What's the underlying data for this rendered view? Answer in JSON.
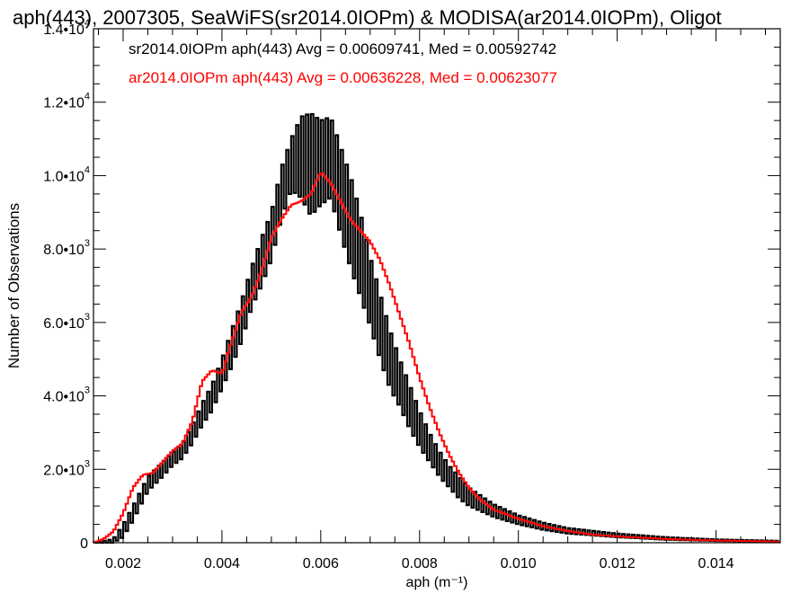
{
  "chart_data": {
    "type": "line",
    "title": "aph(443), 2007305, SeaWiFS(sr2014.0IOPm) & MODISA(ar2014.0IOPm), Oligot",
    "xlabel": "aph (m⁻¹)",
    "ylabel": "Number of Observations",
    "xlim": [
      0.0014,
      0.0153
    ],
    "ylim": [
      0,
      14000
    ],
    "x_ticks": [
      {
        "value": 0.002,
        "label": "0.002"
      },
      {
        "value": 0.004,
        "label": "0.004"
      },
      {
        "value": 0.006,
        "label": "0.006"
      },
      {
        "value": 0.008,
        "label": "0.008"
      },
      {
        "value": 0.01,
        "label": "0.010"
      },
      {
        "value": 0.012,
        "label": "0.012"
      },
      {
        "value": 0.014,
        "label": "0.014"
      }
    ],
    "y_ticks": [
      {
        "value": 0,
        "mant": "0",
        "exp": ""
      },
      {
        "value": 2000,
        "mant": "2.0•10",
        "exp": "3"
      },
      {
        "value": 4000,
        "mant": "4.0•10",
        "exp": "3"
      },
      {
        "value": 6000,
        "mant": "6.0•10",
        "exp": "3"
      },
      {
        "value": 8000,
        "mant": "8.0•10",
        "exp": "3"
      },
      {
        "value": 10000,
        "mant": "1.0•10",
        "exp": "4"
      },
      {
        "value": 12000,
        "mant": "1.2•10",
        "exp": "4"
      },
      {
        "value": 14000,
        "mant": "1.4•10",
        "exp": "4"
      }
    ],
    "legend_placement": "top-left",
    "series": [
      {
        "name": "sr2014.0IOPm",
        "legend_text": "sr2014.0IOPm aph(443) Avg = 0.00609741, Med = 0.00592742",
        "color": "#000000",
        "style": "step-oscillating",
        "x": [
          0.0014,
          0.0018,
          0.002,
          0.0022,
          0.0025,
          0.0028,
          0.003,
          0.0032,
          0.0034,
          0.0036,
          0.0038,
          0.004,
          0.0042,
          0.0044,
          0.0046,
          0.0048,
          0.005,
          0.0052,
          0.0054,
          0.0056,
          0.0058,
          0.006,
          0.0062,
          0.0064,
          0.0066,
          0.0068,
          0.007,
          0.0072,
          0.0074,
          0.0076,
          0.0078,
          0.008,
          0.0082,
          0.0084,
          0.0086,
          0.0088,
          0.009,
          0.0095,
          0.01,
          0.0105,
          0.011,
          0.012,
          0.013,
          0.014,
          0.0153
        ],
        "upper": [
          0,
          100,
          500,
          1000,
          1800,
          2200,
          2450,
          2700,
          3200,
          3800,
          4300,
          5000,
          5800,
          6600,
          7500,
          8300,
          9000,
          10200,
          11000,
          11600,
          11700,
          11500,
          11600,
          10800,
          10000,
          9000,
          7800,
          6800,
          5800,
          5000,
          4300,
          3600,
          3000,
          2500,
          2100,
          1800,
          1500,
          1050,
          750,
          550,
          400,
          250,
          150,
          90,
          50
        ],
        "lower": [
          0,
          0,
          150,
          600,
          1400,
          1800,
          2100,
          2300,
          2700,
          3200,
          3600,
          4200,
          4800,
          5500,
          6400,
          7000,
          7700,
          8800,
          9600,
          9400,
          8900,
          9200,
          9400,
          8400,
          7500,
          6700,
          5900,
          5000,
          4200,
          3700,
          3100,
          2600,
          2200,
          1800,
          1500,
          1200,
          1000,
          700,
          500,
          350,
          250,
          150,
          80,
          50,
          20
        ]
      },
      {
        "name": "ar2014.0IOPm",
        "legend_text": "ar2014.0IOPm aph(443) Avg = 0.00636228, Med = 0.00623077",
        "color": "#ff0000",
        "style": "step",
        "x": [
          0.0014,
          0.0016,
          0.0018,
          0.002,
          0.0022,
          0.0024,
          0.0026,
          0.0028,
          0.003,
          0.0032,
          0.0034,
          0.0036,
          0.0038,
          0.004,
          0.0042,
          0.0044,
          0.0046,
          0.0048,
          0.005,
          0.0052,
          0.0054,
          0.0056,
          0.0058,
          0.006,
          0.0062,
          0.0064,
          0.0066,
          0.0068,
          0.007,
          0.0072,
          0.0074,
          0.0076,
          0.0078,
          0.008,
          0.0082,
          0.0084,
          0.0086,
          0.0088,
          0.009,
          0.0092,
          0.0095,
          0.01,
          0.0105,
          0.011,
          0.0115,
          0.012,
          0.013,
          0.014,
          0.0153
        ],
        "y": [
          0,
          100,
          300,
          800,
          1500,
          1850,
          1900,
          2200,
          2500,
          2700,
          3300,
          4400,
          4700,
          4600,
          5500,
          6300,
          6700,
          7400,
          8300,
          8800,
          9200,
          9300,
          9500,
          10100,
          9800,
          9300,
          8800,
          8500,
          8200,
          7700,
          7000,
          6200,
          5400,
          4500,
          3700,
          3000,
          2400,
          1900,
          1500,
          1200,
          900,
          650,
          450,
          320,
          220,
          170,
          100,
          60,
          30
        ]
      }
    ]
  }
}
